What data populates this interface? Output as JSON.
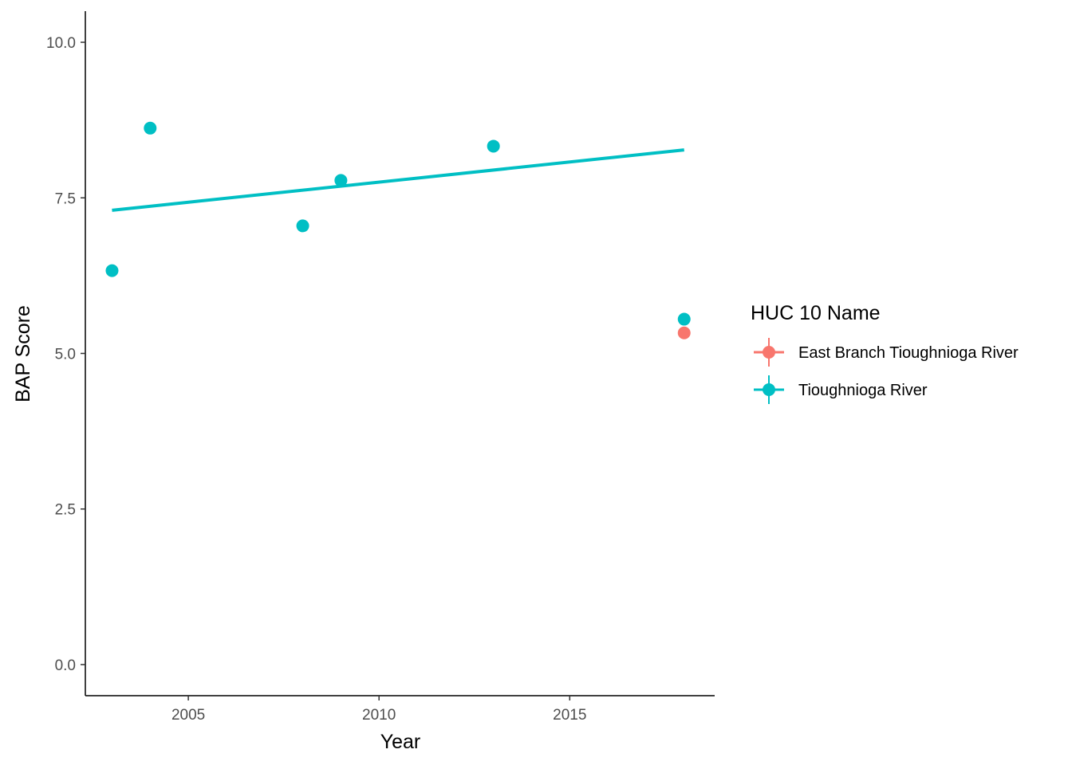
{
  "chart_data": {
    "type": "scatter",
    "xlabel": "Year",
    "ylabel": "BAP Score",
    "xlim": [
      2002.3,
      2018.8
    ],
    "ylim": [
      -0.5,
      10.5
    ],
    "x_ticks": [
      2005,
      2010,
      2015
    ],
    "x_tick_labels": [
      "2005",
      "2010",
      "2015"
    ],
    "y_ticks": [
      0,
      2.5,
      5,
      7.5,
      10
    ],
    "y_tick_labels": [
      "0.0",
      "2.5",
      "5.0",
      "7.5",
      "10.0"
    ],
    "grid": false,
    "legend": {
      "title": "HUC 10 Name",
      "placement": "right"
    },
    "series": [
      {
        "name": "East Branch Tioughnioga River",
        "color": "#F8766D",
        "points": [
          {
            "x": 2018,
            "y": 5.33
          }
        ]
      },
      {
        "name": "Tioughnioga River",
        "color": "#00BFC4",
        "points": [
          {
            "x": 2003,
            "y": 6.33
          },
          {
            "x": 2004,
            "y": 8.62
          },
          {
            "x": 2008,
            "y": 7.05
          },
          {
            "x": 2009,
            "y": 7.78
          },
          {
            "x": 2013,
            "y": 8.33
          },
          {
            "x": 2018,
            "y": 5.55
          }
        ],
        "trend_line": {
          "x": [
            2003,
            2018
          ],
          "y": [
            7.3,
            8.27
          ]
        }
      }
    ]
  }
}
